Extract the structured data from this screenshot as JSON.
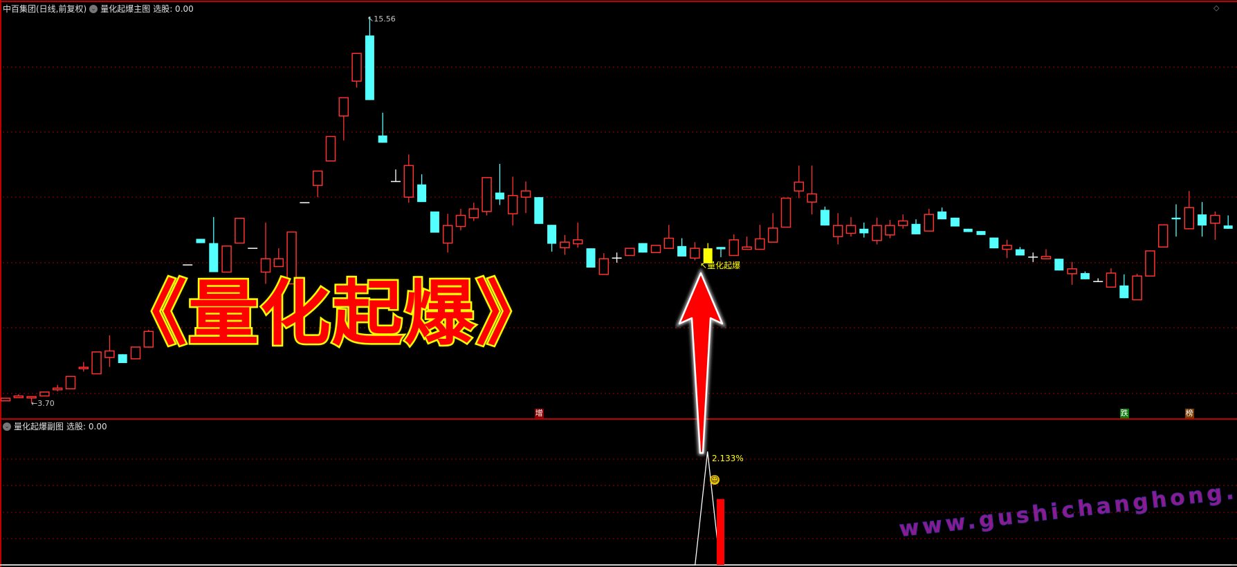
{
  "main_panel": {
    "stock_name": "中百集团(日线,前复权)",
    "indicator_name": "量化起爆主图",
    "select_label": "选股: 0.00",
    "high_label": "15.56",
    "low_label": "3.70",
    "signal_text": "量化起爆",
    "big_title": "《量化起爆》",
    "tags": [
      {
        "text": "增",
        "color": "#8b0000",
        "index": 41
      },
      {
        "text": "跌",
        "color": "#0a7a0a",
        "index": 86
      },
      {
        "text": "榜",
        "color": "#7a3a00",
        "index": 91
      }
    ]
  },
  "sub_panel": {
    "indicator_name": "量化起爆副图",
    "select_label": "选股: 0.00",
    "peak_label": "2.133%",
    "smiley_icon": "smiley-icon"
  },
  "watermark": "www.gushichanghong.com",
  "colors": {
    "up": "#ff3232",
    "down": "#54ffff",
    "doji": "#ffffff",
    "signal": "#ffff00",
    "grid": "#a00000",
    "border": "#c00000"
  },
  "chart_data": {
    "type": "candlestick",
    "price_range": [
      3.7,
      15.56
    ],
    "signal_index": 54,
    "candles": [
      [
        3.77,
        3.85,
        3.77,
        3.85
      ],
      [
        3.87,
        3.97,
        3.87,
        3.92
      ],
      [
        3.89,
        3.89,
        3.7,
        3.9
      ],
      [
        3.92,
        4.04,
        3.92,
        4.04
      ],
      [
        4.11,
        4.26,
        4.06,
        4.16
      ],
      [
        4.14,
        4.52,
        4.14,
        4.52
      ],
      [
        4.78,
        4.96,
        4.67,
        4.8
      ],
      [
        4.6,
        5.27,
        4.6,
        5.27
      ],
      [
        5.1,
        5.78,
        4.81,
        5.3
      ],
      [
        5.2,
        5.2,
        4.93,
        4.93
      ],
      [
        5.06,
        5.42,
        5.06,
        5.42
      ],
      [
        5.42,
        5.95,
        5.4,
        5.9
      ],
      [
        6.56,
        6.56,
        6.56,
        6.56
      ],
      [
        7.11,
        7.4,
        7.05,
        7.36
      ],
      [
        7.94,
        7.94,
        7.94,
        7.94
      ],
      [
        8.74,
        8.74,
        8.61,
        8.61
      ],
      [
        8.61,
        9.41,
        7.72,
        7.72
      ],
      [
        7.72,
        8.52,
        7.72,
        8.52
      ],
      [
        8.61,
        9.37,
        8.61,
        9.37
      ],
      [
        8.45,
        8.45,
        8.45,
        8.45
      ],
      [
        7.72,
        9.24,
        7.36,
        8.13
      ],
      [
        7.89,
        8.45,
        7.89,
        8.13
      ],
      [
        7.36,
        8.95,
        7.36,
        8.95
      ],
      [
        9.85,
        9.85,
        9.85,
        9.85
      ],
      [
        10.38,
        10.82,
        10.02,
        10.82
      ],
      [
        11.13,
        11.88,
        11.13,
        11.88
      ],
      [
        12.51,
        13.07,
        11.76,
        13.07
      ],
      [
        13.58,
        14.43,
        13.38,
        14.43
      ],
      [
        14.98,
        15.56,
        13.0,
        13.0
      ],
      [
        11.91,
        12.61,
        11.69,
        11.69
      ],
      [
        10.5,
        10.87,
        10.5,
        10.5
      ],
      [
        10.02,
        11.33,
        9.85,
        10.99
      ],
      [
        10.41,
        10.72,
        9.87,
        9.87
      ],
      [
        9.58,
        9.58,
        8.93,
        8.93
      ],
      [
        8.61,
        9.51,
        8.32,
        9.15
      ],
      [
        9.12,
        9.66,
        9.0,
        9.46
      ],
      [
        9.39,
        9.85,
        9.29,
        9.66
      ],
      [
        9.58,
        10.62,
        9.46,
        10.62
      ],
      [
        10.16,
        11.04,
        9.78,
        9.95
      ],
      [
        9.51,
        10.65,
        9.15,
        10.07
      ],
      [
        10.02,
        10.5,
        9.53,
        10.21
      ],
      [
        10.02,
        10.02,
        9.2,
        9.2
      ],
      [
        9.17,
        9.17,
        8.35,
        8.59
      ],
      [
        8.47,
        8.86,
        8.25,
        8.64
      ],
      [
        8.59,
        9.24,
        8.47,
        8.71
      ],
      [
        8.45,
        8.45,
        7.86,
        7.86
      ],
      [
        7.65,
        8.3,
        7.65,
        8.13
      ],
      [
        8.15,
        8.32,
        8.01,
        8.15
      ],
      [
        8.23,
        8.45,
        8.23,
        8.45
      ],
      [
        8.61,
        8.61,
        8.32,
        8.32
      ],
      [
        8.32,
        8.54,
        8.32,
        8.54
      ],
      [
        8.45,
        9.17,
        8.45,
        8.76
      ],
      [
        8.52,
        8.76,
        8.2,
        8.2
      ],
      [
        8.15,
        8.64,
        8.08,
        8.45
      ],
      [
        8.45,
        8.61,
        7.99,
        7.99
      ],
      [
        8.49,
        8.49,
        8.18,
        8.42
      ],
      [
        8.23,
        8.88,
        8.23,
        8.71
      ],
      [
        8.42,
        8.81,
        8.42,
        8.49
      ],
      [
        8.42,
        9.17,
        8.42,
        8.74
      ],
      [
        8.64,
        9.53,
        8.64,
        9.07
      ],
      [
        9.1,
        9.99,
        9.1,
        9.99
      ],
      [
        10.21,
        10.99,
        9.99,
        10.48
      ],
      [
        9.87,
        10.99,
        9.49,
        10.12
      ],
      [
        9.63,
        9.73,
        9.15,
        9.15
      ],
      [
        8.81,
        9.53,
        8.57,
        9.15
      ],
      [
        8.91,
        9.41,
        8.81,
        9.15
      ],
      [
        9.05,
        9.24,
        8.78,
        8.91
      ],
      [
        8.69,
        9.39,
        8.57,
        9.15
      ],
      [
        8.86,
        9.32,
        8.76,
        9.15
      ],
      [
        9.15,
        9.49,
        9.05,
        9.29
      ],
      [
        9.2,
        9.34,
        8.88,
        8.88
      ],
      [
        8.98,
        9.66,
        8.98,
        9.49
      ],
      [
        9.58,
        9.7,
        9.34,
        9.34
      ],
      [
        9.39,
        9.39,
        9.12,
        9.12
      ],
      [
        9.05,
        9.05,
        8.95,
        8.95
      ],
      [
        8.98,
        8.98,
        8.86,
        8.86
      ],
      [
        8.78,
        8.78,
        8.45,
        8.45
      ],
      [
        8.42,
        8.71,
        8.15,
        8.54
      ],
      [
        8.42,
        8.49,
        8.23,
        8.23
      ],
      [
        8.18,
        8.32,
        8.03,
        8.18
      ],
      [
        8.13,
        8.42,
        8.13,
        8.2
      ],
      [
        8.13,
        8.13,
        7.77,
        7.77
      ],
      [
        7.67,
        8.03,
        7.33,
        7.82
      ],
      [
        7.69,
        7.74,
        7.5,
        7.5
      ],
      [
        7.43,
        7.53,
        7.43,
        7.43
      ],
      [
        7.26,
        7.84,
        7.26,
        7.69
      ],
      [
        7.31,
        7.65,
        6.92,
        6.92
      ],
      [
        6.87,
        7.67,
        6.87,
        7.6
      ],
      [
        7.6,
        8.37,
        7.6,
        8.37
      ],
      [
        8.49,
        9.17,
        8.49,
        9.17
      ],
      [
        9.39,
        9.8,
        8.81,
        9.34
      ],
      [
        9.05,
        10.21,
        9.05,
        9.7
      ],
      [
        9.49,
        9.87,
        8.81,
        9.15
      ],
      [
        9.22,
        9.58,
        8.71,
        9.46
      ],
      [
        9.15,
        9.46,
        9.05,
        9.05
      ]
    ],
    "sub_series": {
      "line_peak": 2.133,
      "line_peak_index": 54,
      "bar_value": 1.24,
      "bar_index": 55
    }
  }
}
